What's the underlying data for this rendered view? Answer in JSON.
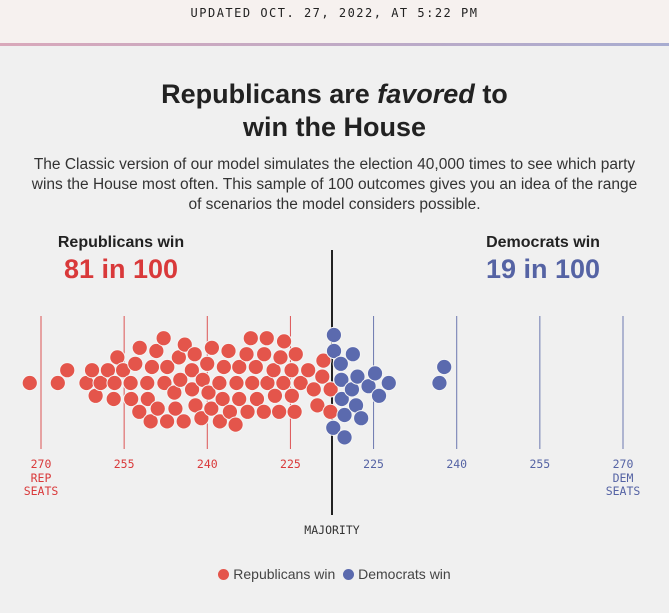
{
  "updated": "UPDATED OCT. 27, 2022, AT 5:22 PM",
  "title": {
    "part1": "Republicans are ",
    "emph": "favored",
    "part2": " to",
    "line2": "win the House"
  },
  "description": "The Classic version of our model simulates the election 40,000 times to see which party wins the House most often. This sample of 100 outcomes gives you an idea of the range of scenarios the model considers possible.",
  "republicans": {
    "label": "Republicans win",
    "value": "81 in 100"
  },
  "democrats": {
    "label": "Democrats win",
    "value": "19 in 100"
  },
  "colors": {
    "rep": "#e4554b",
    "dem": "#5b6aae",
    "rep_line": "#d9393a",
    "dem_line": "#5563a4"
  },
  "chart_data": {
    "type": "scatter",
    "subtype": "beeswarm",
    "x_unit": "Democratic seats",
    "xlim": [
      163,
      270
    ],
    "majority": 218,
    "majority_label": "MAJORITY",
    "ticks": [
      {
        "dem_seats": 165,
        "label": "270",
        "sub": [
          "REP",
          "SEATS"
        ],
        "party": "rep"
      },
      {
        "dem_seats": 180,
        "label": "255",
        "party": "rep"
      },
      {
        "dem_seats": 195,
        "label": "240",
        "party": "rep"
      },
      {
        "dem_seats": 210,
        "label": "225",
        "party": "rep"
      },
      {
        "dem_seats": 225,
        "label": "225",
        "party": "dem"
      },
      {
        "dem_seats": 240,
        "label": "240",
        "party": "dem"
      },
      {
        "dem_seats": 255,
        "label": "255",
        "party": "dem"
      },
      {
        "dem_seats": 270,
        "label": "270",
        "sub": [
          "DEM",
          "SEATS"
        ],
        "party": "dem"
      }
    ],
    "outcomes_dem_seats": [
      163,
      168,
      170,
      173,
      174,
      175,
      176,
      177,
      178,
      178,
      179,
      180,
      181,
      181,
      182,
      183,
      183,
      184,
      184,
      185,
      185,
      186,
      186,
      187,
      187,
      188,
      188,
      189,
      189,
      190,
      190,
      191,
      191,
      192,
      192,
      193,
      193,
      194,
      194,
      195,
      195,
      196,
      196,
      197,
      197,
      198,
      198,
      199,
      199,
      200,
      200,
      201,
      201,
      202,
      202,
      203,
      203,
      204,
      204,
      205,
      205,
      206,
      206,
      207,
      207,
      208,
      208,
      209,
      209,
      210,
      210,
      211,
      211,
      212,
      213,
      214,
      215,
      216,
      216,
      217,
      217,
      218,
      218,
      218,
      219,
      219,
      219,
      220,
      220,
      221,
      221,
      222,
      222,
      223,
      224,
      225,
      226,
      228,
      237,
      238
    ],
    "legend": [
      {
        "label": "Republicans win",
        "party": "rep"
      },
      {
        "label": "Democrats win",
        "party": "dem"
      }
    ]
  }
}
